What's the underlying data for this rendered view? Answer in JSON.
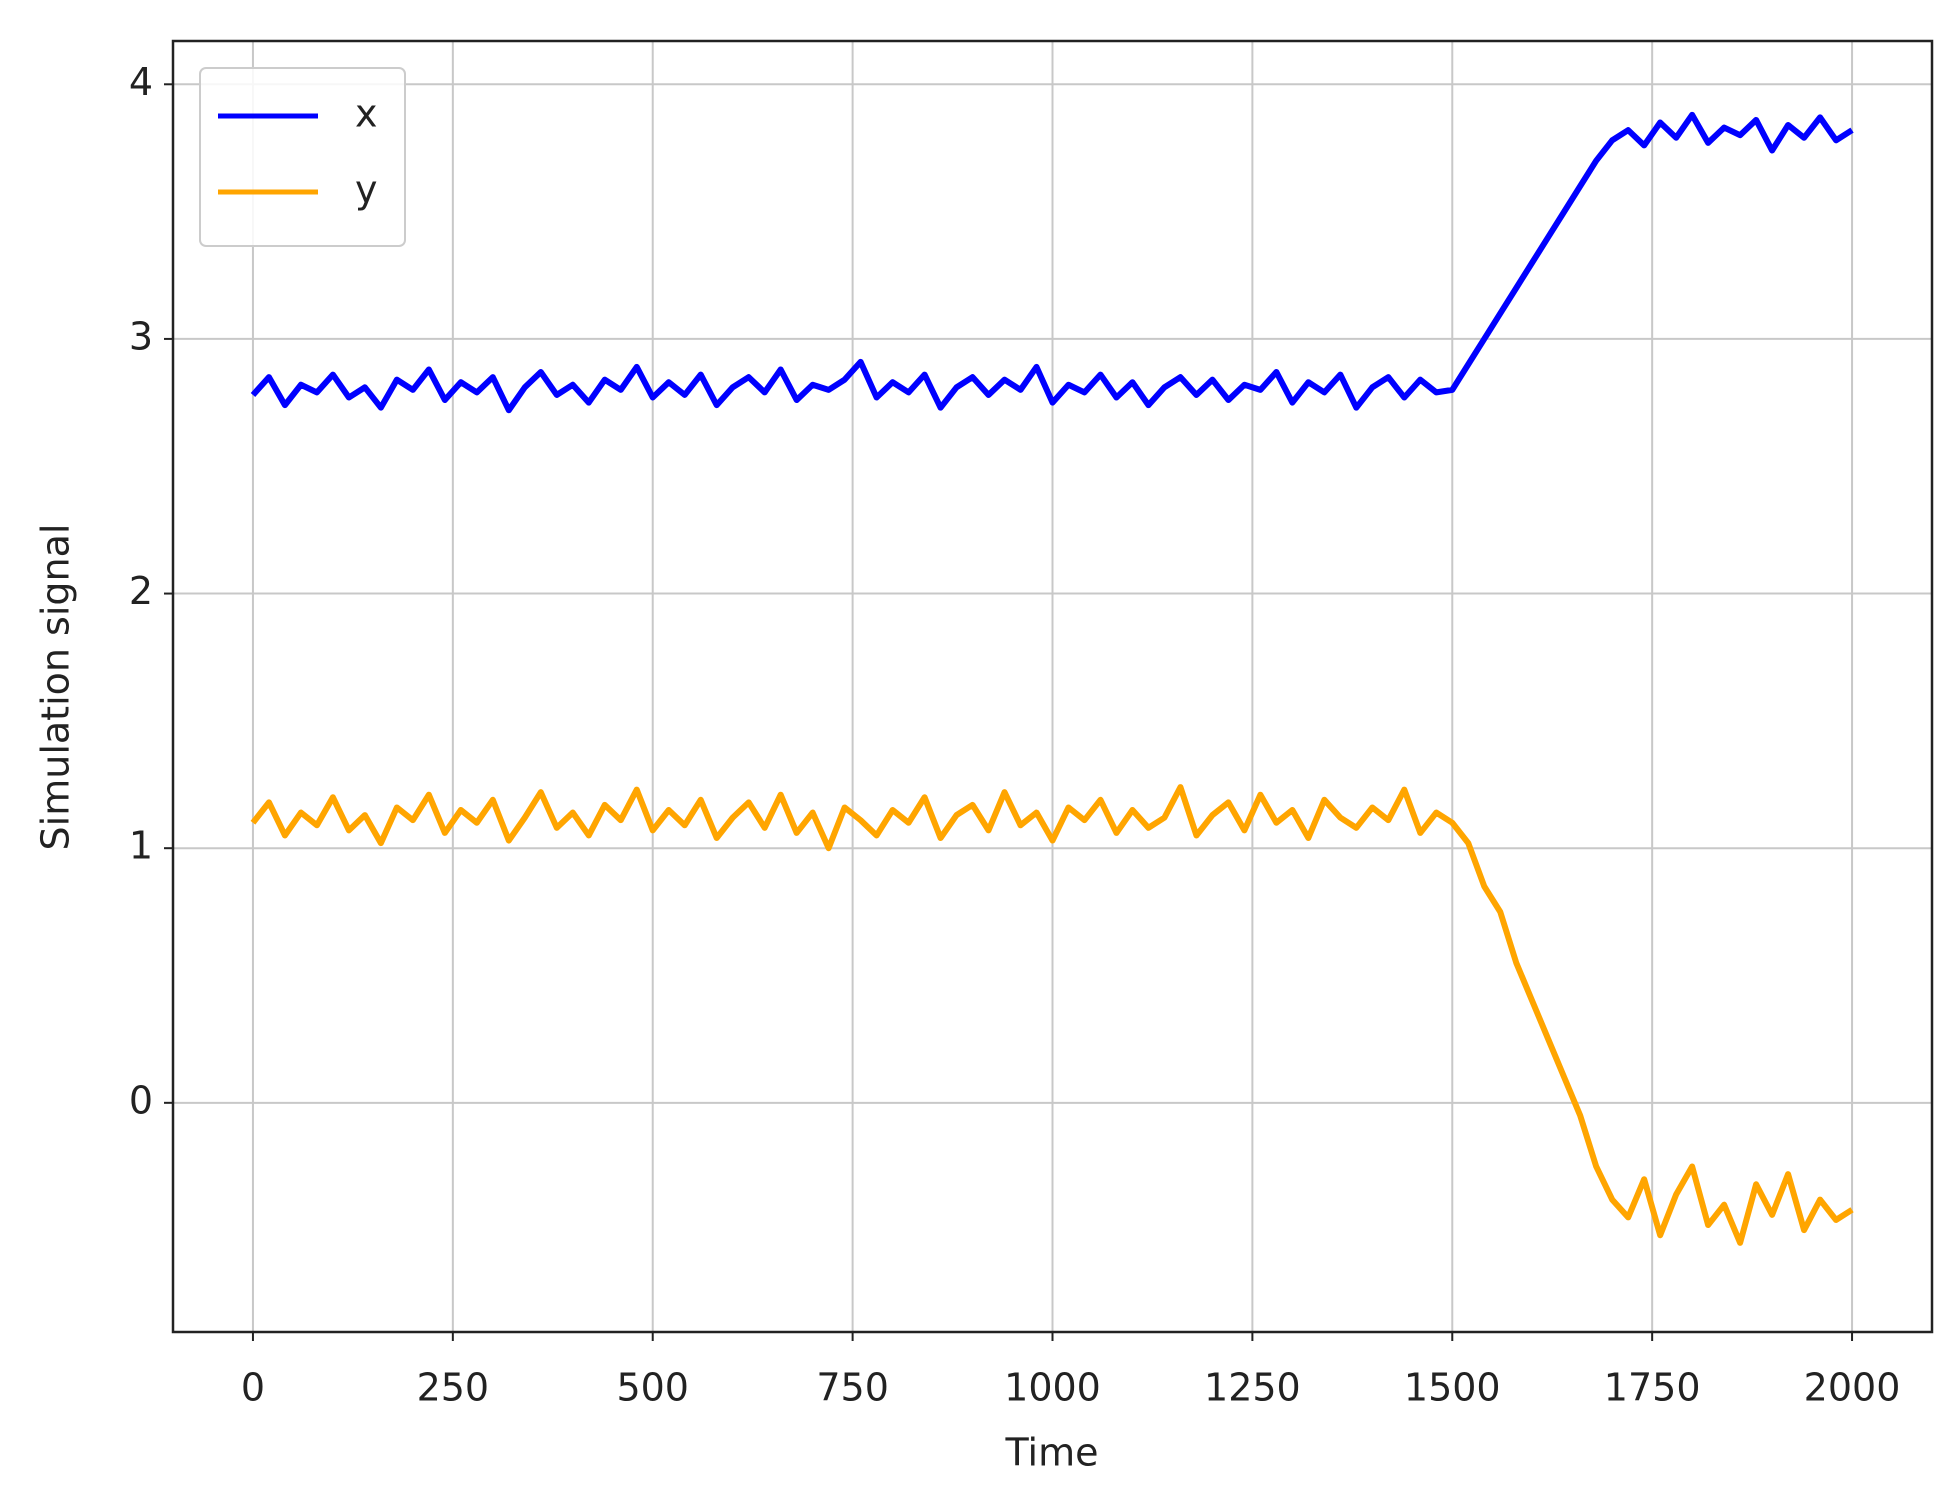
{
  "chart_data": {
    "type": "line",
    "xlabel": "Time",
    "ylabel": "Simulation signal",
    "x": [
      0,
      20,
      40,
      60,
      80,
      100,
      120,
      140,
      160,
      180,
      200,
      220,
      240,
      260,
      280,
      300,
      320,
      340,
      360,
      380,
      400,
      420,
      440,
      460,
      480,
      500,
      520,
      540,
      560,
      580,
      600,
      620,
      640,
      660,
      680,
      700,
      720,
      740,
      760,
      780,
      800,
      820,
      840,
      860,
      880,
      900,
      920,
      940,
      960,
      980,
      1000,
      1020,
      1040,
      1060,
      1080,
      1100,
      1120,
      1140,
      1160,
      1180,
      1200,
      1220,
      1240,
      1260,
      1280,
      1300,
      1320,
      1340,
      1360,
      1380,
      1400,
      1420,
      1440,
      1460,
      1480,
      1500,
      1520,
      1540,
      1560,
      1580,
      1600,
      1620,
      1640,
      1660,
      1680,
      1700,
      1720,
      1740,
      1760,
      1780,
      1800,
      1820,
      1840,
      1860,
      1880,
      1900,
      1920,
      1940,
      1960,
      1980,
      2000
    ],
    "series": [
      {
        "name": "x",
        "color": "#0000ff",
        "values": [
          2.78,
          2.85,
          2.74,
          2.82,
          2.79,
          2.86,
          2.77,
          2.81,
          2.73,
          2.84,
          2.8,
          2.88,
          2.76,
          2.83,
          2.79,
          2.85,
          2.72,
          2.81,
          2.87,
          2.78,
          2.82,
          2.75,
          2.84,
          2.8,
          2.89,
          2.77,
          2.83,
          2.78,
          2.86,
          2.74,
          2.81,
          2.85,
          2.79,
          2.88,
          2.76,
          2.82,
          2.8,
          2.84,
          2.91,
          2.77,
          2.83,
          2.79,
          2.86,
          2.73,
          2.81,
          2.85,
          2.78,
          2.84,
          2.8,
          2.89,
          2.75,
          2.82,
          2.79,
          2.86,
          2.77,
          2.83,
          2.74,
          2.81,
          2.85,
          2.78,
          2.84,
          2.76,
          2.82,
          2.8,
          2.87,
          2.75,
          2.83,
          2.79,
          2.86,
          2.73,
          2.81,
          2.85,
          2.77,
          2.84,
          2.79,
          2.8,
          2.9,
          3.0,
          3.1,
          3.2,
          3.3,
          3.4,
          3.5,
          3.6,
          3.7,
          3.78,
          3.82,
          3.76,
          3.85,
          3.79,
          3.88,
          3.77,
          3.83,
          3.8,
          3.86,
          3.74,
          3.84,
          3.79,
          3.87,
          3.78,
          3.82
        ]
      },
      {
        "name": "y",
        "color": "#ffa500",
        "values": [
          1.1,
          1.18,
          1.05,
          1.14,
          1.09,
          1.2,
          1.07,
          1.13,
          1.02,
          1.16,
          1.11,
          1.21,
          1.06,
          1.15,
          1.1,
          1.19,
          1.03,
          1.12,
          1.22,
          1.08,
          1.14,
          1.05,
          1.17,
          1.11,
          1.23,
          1.07,
          1.15,
          1.09,
          1.19,
          1.04,
          1.12,
          1.18,
          1.08,
          1.21,
          1.06,
          1.14,
          1.0,
          1.16,
          1.11,
          1.05,
          1.15,
          1.1,
          1.2,
          1.04,
          1.13,
          1.17,
          1.07,
          1.22,
          1.09,
          1.14,
          1.03,
          1.16,
          1.11,
          1.19,
          1.06,
          1.15,
          1.08,
          1.12,
          1.24,
          1.05,
          1.13,
          1.18,
          1.07,
          1.21,
          1.1,
          1.15,
          1.04,
          1.19,
          1.12,
          1.08,
          1.16,
          1.11,
          1.23,
          1.06,
          1.14,
          1.1,
          1.02,
          0.85,
          0.75,
          0.55,
          0.4,
          0.25,
          0.1,
          -0.05,
          -0.25,
          -0.38,
          -0.45,
          -0.3,
          -0.52,
          -0.36,
          -0.25,
          -0.48,
          -0.4,
          -0.55,
          -0.32,
          -0.44,
          -0.28,
          -0.5,
          -0.38,
          -0.46,
          -0.42
        ]
      }
    ],
    "xlim": [
      -100,
      2100
    ],
    "xticks": [
      0,
      250,
      500,
      750,
      1000,
      1250,
      1500,
      1750,
      2000
    ],
    "ylim": [
      -0.9,
      4.17
    ],
    "yticks": [
      0,
      1,
      2,
      3,
      4
    ],
    "grid": true,
    "legend": "upper-left"
  }
}
